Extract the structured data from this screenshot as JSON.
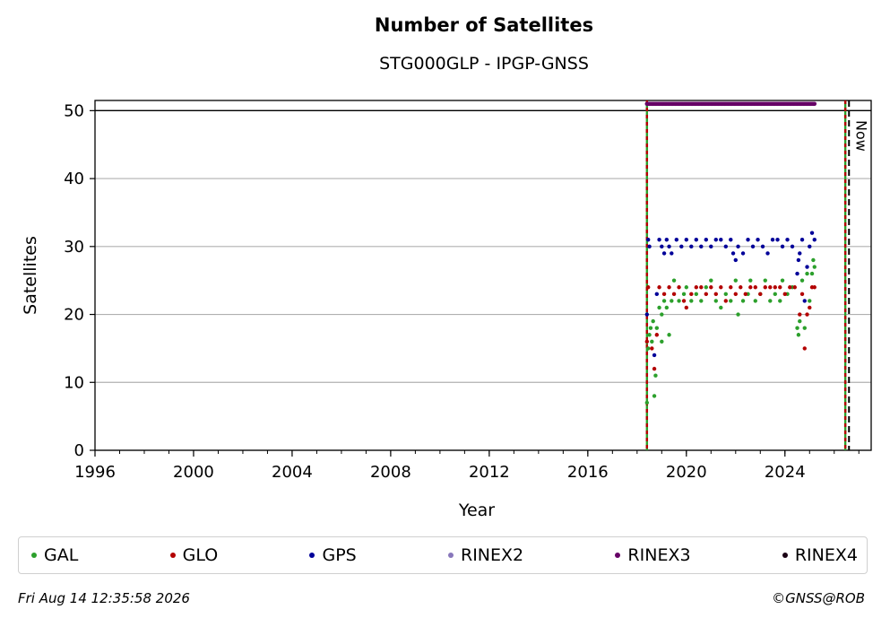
{
  "chart_data": {
    "type": "scatter",
    "title": "Number of Satellites",
    "subtitle": "STG000GLP - IPGP-GNSS",
    "xlabel": "Year",
    "ylabel": "Satellites",
    "xlim": [
      1996,
      2027.5
    ],
    "ylim": [
      0,
      51.5
    ],
    "x_ticks": [
      "1996",
      "2000",
      "2004",
      "2008",
      "2012",
      "2016",
      "2020",
      "2024"
    ],
    "y_ticks": [
      "0",
      "10",
      "20",
      "30",
      "40",
      "50"
    ],
    "grid": "horizontal",
    "reference_line": 50,
    "vertical_lines": [
      {
        "x": 2018.4,
        "style": "green-red dashed"
      },
      {
        "x": 2026.45,
        "style": "green-red dashed"
      },
      {
        "x": 2026.6,
        "style": "black dashed",
        "label": "Now"
      }
    ],
    "series": [
      {
        "name": "GAL",
        "color": "#2ca02c",
        "points": [
          [
            2018.4,
            7
          ],
          [
            2018.45,
            15
          ],
          [
            2018.5,
            17
          ],
          [
            2018.55,
            18
          ],
          [
            2018.6,
            16
          ],
          [
            2018.65,
            19
          ],
          [
            2018.7,
            8
          ],
          [
            2018.75,
            11
          ],
          [
            2018.8,
            18
          ],
          [
            2018.9,
            21
          ],
          [
            2019.0,
            16
          ],
          [
            2019.0,
            20
          ],
          [
            2019.1,
            22
          ],
          [
            2019.2,
            21
          ],
          [
            2019.3,
            17
          ],
          [
            2019.4,
            22
          ],
          [
            2019.5,
            25
          ],
          [
            2019.7,
            22
          ],
          [
            2019.9,
            23
          ],
          [
            2020.0,
            24
          ],
          [
            2020.2,
            22
          ],
          [
            2020.4,
            23
          ],
          [
            2020.6,
            22
          ],
          [
            2020.8,
            24
          ],
          [
            2021.0,
            25
          ],
          [
            2021.2,
            22
          ],
          [
            2021.4,
            21
          ],
          [
            2021.6,
            23
          ],
          [
            2021.8,
            22
          ],
          [
            2022.0,
            25
          ],
          [
            2022.1,
            20
          ],
          [
            2022.3,
            22
          ],
          [
            2022.5,
            23
          ],
          [
            2022.6,
            25
          ],
          [
            2022.8,
            22
          ],
          [
            2023.0,
            23
          ],
          [
            2023.2,
            25
          ],
          [
            2023.4,
            22
          ],
          [
            2023.6,
            23
          ],
          [
            2023.8,
            22
          ],
          [
            2023.9,
            25
          ],
          [
            2024.1,
            23
          ],
          [
            2024.3,
            24
          ],
          [
            2024.5,
            18
          ],
          [
            2024.55,
            17
          ],
          [
            2024.6,
            19
          ],
          [
            2024.7,
            25
          ],
          [
            2024.8,
            18
          ],
          [
            2024.9,
            26
          ],
          [
            2025.0,
            22
          ],
          [
            2025.1,
            26
          ],
          [
            2025.15,
            28
          ],
          [
            2025.2,
            27
          ]
        ]
      },
      {
        "name": "GLO",
        "color": "#b30000",
        "points": [
          [
            2018.4,
            16
          ],
          [
            2018.45,
            24
          ],
          [
            2018.6,
            15
          ],
          [
            2018.7,
            12
          ],
          [
            2018.8,
            17
          ],
          [
            2018.9,
            24
          ],
          [
            2019.1,
            23
          ],
          [
            2019.3,
            24
          ],
          [
            2019.5,
            23
          ],
          [
            2019.7,
            24
          ],
          [
            2019.9,
            22
          ],
          [
            2020.0,
            21
          ],
          [
            2020.2,
            23
          ],
          [
            2020.4,
            24
          ],
          [
            2020.6,
            24
          ],
          [
            2020.8,
            23
          ],
          [
            2021.0,
            24
          ],
          [
            2021.2,
            23
          ],
          [
            2021.4,
            24
          ],
          [
            2021.6,
            22
          ],
          [
            2021.8,
            24
          ],
          [
            2022.0,
            23
          ],
          [
            2022.2,
            24
          ],
          [
            2022.4,
            23
          ],
          [
            2022.6,
            24
          ],
          [
            2022.8,
            24
          ],
          [
            2023.0,
            23
          ],
          [
            2023.2,
            24
          ],
          [
            2023.4,
            24
          ],
          [
            2023.6,
            24
          ],
          [
            2023.8,
            24
          ],
          [
            2024.0,
            23
          ],
          [
            2024.2,
            24
          ],
          [
            2024.4,
            24
          ],
          [
            2024.6,
            20
          ],
          [
            2024.7,
            23
          ],
          [
            2024.8,
            15
          ],
          [
            2024.9,
            20
          ],
          [
            2025.0,
            21
          ],
          [
            2025.1,
            24
          ],
          [
            2025.2,
            24
          ]
        ]
      },
      {
        "name": "GPS",
        "color": "#000099",
        "points": [
          [
            2018.4,
            20
          ],
          [
            2018.45,
            31
          ],
          [
            2018.5,
            30
          ],
          [
            2018.7,
            14
          ],
          [
            2018.8,
            23
          ],
          [
            2018.9,
            31
          ],
          [
            2019.0,
            30
          ],
          [
            2019.1,
            29
          ],
          [
            2019.2,
            31
          ],
          [
            2019.3,
            30
          ],
          [
            2019.4,
            29
          ],
          [
            2019.6,
            31
          ],
          [
            2019.8,
            30
          ],
          [
            2020.0,
            31
          ],
          [
            2020.2,
            30
          ],
          [
            2020.4,
            31
          ],
          [
            2020.6,
            30
          ],
          [
            2020.8,
            31
          ],
          [
            2021.0,
            30
          ],
          [
            2021.2,
            31
          ],
          [
            2021.4,
            31
          ],
          [
            2021.6,
            30
          ],
          [
            2021.8,
            31
          ],
          [
            2021.9,
            29
          ],
          [
            2022.0,
            28
          ],
          [
            2022.1,
            30
          ],
          [
            2022.3,
            29
          ],
          [
            2022.5,
            31
          ],
          [
            2022.7,
            30
          ],
          [
            2022.9,
            31
          ],
          [
            2023.1,
            30
          ],
          [
            2023.3,
            29
          ],
          [
            2023.5,
            31
          ],
          [
            2023.7,
            31
          ],
          [
            2023.9,
            30
          ],
          [
            2024.1,
            31
          ],
          [
            2024.3,
            30
          ],
          [
            2024.5,
            26
          ],
          [
            2024.55,
            28
          ],
          [
            2024.6,
            29
          ],
          [
            2024.7,
            31
          ],
          [
            2024.8,
            22
          ],
          [
            2024.9,
            27
          ],
          [
            2025.0,
            30
          ],
          [
            2025.1,
            32
          ],
          [
            2025.2,
            31
          ]
        ]
      },
      {
        "name": "RINEX2",
        "color": "#8877bb",
        "points": []
      },
      {
        "name": "RINEX3",
        "color": "#660066",
        "segment": {
          "x_start": 2018.4,
          "x_end": 2025.2,
          "y": 51
        }
      },
      {
        "name": "RINEX4",
        "color": "#1a0014",
        "points": []
      }
    ]
  },
  "footer": {
    "date": "Fri Aug 14 12:35:58 2026",
    "credit": "©GNSS@ROB"
  }
}
